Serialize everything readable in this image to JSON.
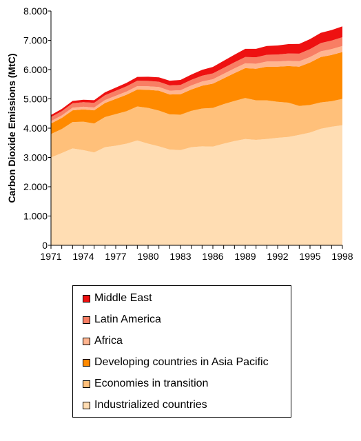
{
  "chart_data": {
    "type": "area",
    "stacked": true,
    "title": "",
    "xlabel": "",
    "ylabel": "Carbon Dioxide Emissions (MtC)",
    "x": [
      1971,
      1972,
      1973,
      1974,
      1975,
      1976,
      1977,
      1978,
      1979,
      1980,
      1981,
      1982,
      1983,
      1984,
      1985,
      1986,
      1987,
      1988,
      1989,
      1990,
      1991,
      1992,
      1993,
      1994,
      1995,
      1996,
      1997,
      1998
    ],
    "xticks": [
      "1971",
      "1974",
      "1977",
      "1980",
      "1983",
      "1986",
      "1989",
      "1992",
      "1995",
      "1998"
    ],
    "yticks": [
      "0",
      "1.000",
      "2.000",
      "3.000",
      "4.000",
      "5.000",
      "6.000",
      "7.000",
      "8.000"
    ],
    "ylim": [
      0,
      8000
    ],
    "grid": false,
    "legend_position": "bottom",
    "series": [
      {
        "name": "Industrialized countries",
        "color": "#FFDDB3",
        "values": [
          3000,
          3150,
          3310,
          3250,
          3170,
          3350,
          3400,
          3470,
          3580,
          3470,
          3380,
          3270,
          3250,
          3350,
          3380,
          3370,
          3470,
          3560,
          3630,
          3600,
          3630,
          3670,
          3700,
          3770,
          3850,
          3980,
          4050,
          4100
        ]
      },
      {
        "name": "Economies in transition",
        "color": "#FFC07A",
        "values": [
          800,
          820,
          900,
          970,
          990,
          1030,
          1080,
          1110,
          1160,
          1220,
          1220,
          1200,
          1210,
          1240,
          1290,
          1320,
          1350,
          1370,
          1400,
          1350,
          1320,
          1230,
          1170,
          990,
          940,
          900,
          870,
          900
        ]
      },
      {
        "name": "Developing countries in Asia Pacific",
        "color": "#FF8A00",
        "values": [
          360,
          380,
          400,
          420,
          450,
          480,
          520,
          560,
          580,
          620,
          680,
          680,
          700,
          730,
          780,
          830,
          880,
          950,
          1020,
          1080,
          1150,
          1200,
          1250,
          1340,
          1450,
          1550,
          1580,
          1600
        ]
      },
      {
        "name": "Africa",
        "color": "#FFB590",
        "values": [
          80,
          85,
          90,
          92,
          95,
          100,
          105,
          110,
          115,
          120,
          125,
          130,
          135,
          140,
          145,
          150,
          155,
          160,
          165,
          170,
          175,
          175,
          180,
          185,
          190,
          195,
          200,
          205
        ]
      },
      {
        "name": "Latin America",
        "color": "#F87E64",
        "values": [
          140,
          145,
          150,
          155,
          160,
          165,
          170,
          178,
          185,
          185,
          180,
          180,
          182,
          190,
          195,
          200,
          205,
          210,
          215,
          220,
          230,
          240,
          250,
          260,
          270,
          280,
          290,
          300
        ]
      },
      {
        "name": "Middle East",
        "color": "#EE1111",
        "values": [
          70,
          75,
          80,
          85,
          90,
          100,
          110,
          120,
          130,
          140,
          150,
          160,
          170,
          180,
          200,
          220,
          240,
          260,
          280,
          290,
          300,
          310,
          320,
          330,
          340,
          350,
          360,
          370
        ]
      }
    ]
  },
  "legend": {
    "items": [
      {
        "label": "Middle East",
        "color": "#EE1111"
      },
      {
        "label": "Latin America",
        "color": "#F87E64"
      },
      {
        "label": "Africa",
        "color": "#FFB590"
      },
      {
        "label": "Developing countries in Asia Pacific",
        "color": "#FF8A00"
      },
      {
        "label": "Economies in transition",
        "color": "#FFC07A"
      },
      {
        "label": "Industrialized countries",
        "color": "#FFDDB3"
      }
    ]
  }
}
